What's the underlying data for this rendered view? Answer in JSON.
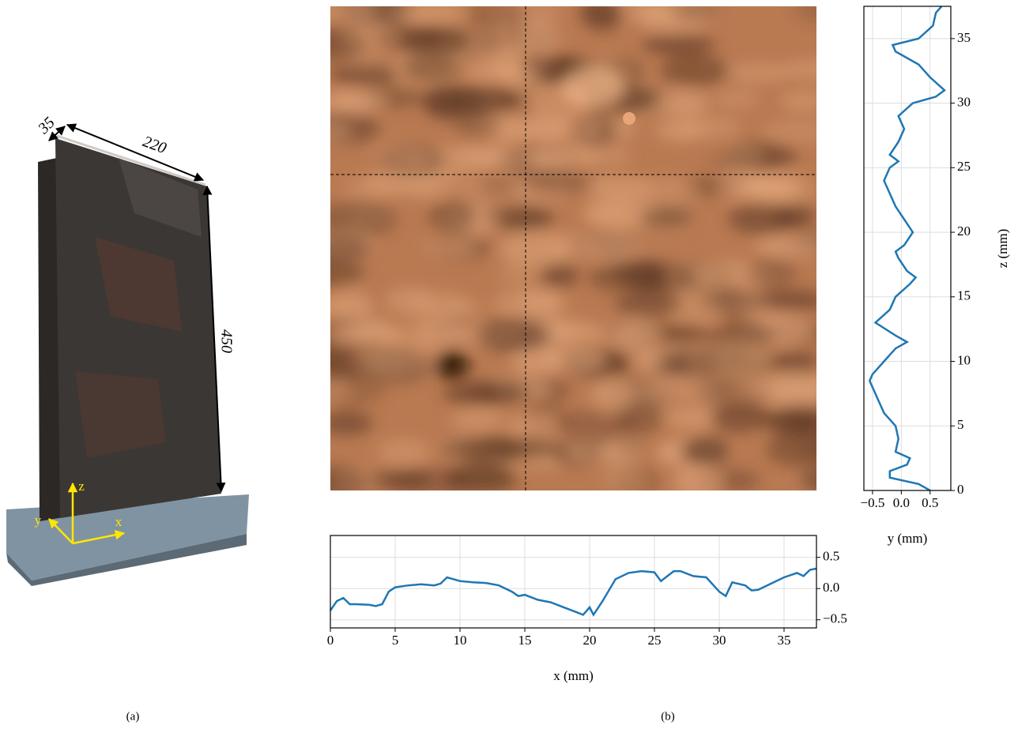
{
  "photo": {
    "dimensions": [
      "35",
      "220",
      "450"
    ],
    "axes": [
      "x",
      "y",
      "z"
    ]
  },
  "captions": [
    "(a)",
    "(b)"
  ],
  "chart_data": [
    {
      "type": "line",
      "xlabel": "x (mm)",
      "color": "#1f77b4",
      "x": [
        0,
        0.5,
        1,
        1.5,
        2,
        3,
        3.5,
        4,
        4.5,
        5,
        6,
        7,
        8,
        8.5,
        9,
        10,
        11,
        12,
        13,
        14,
        14.5,
        15,
        16,
        17,
        18,
        19,
        19.5,
        20,
        20.3,
        21,
        22,
        23,
        24,
        25,
        25.5,
        26,
        26.5,
        27,
        28,
        29,
        30,
        30.5,
        31,
        32,
        32.5,
        33,
        34,
        35,
        36,
        36.5,
        37,
        37.5
      ],
      "values": [
        -0.35,
        -0.2,
        -0.15,
        -0.25,
        -0.25,
        -0.26,
        -0.28,
        -0.25,
        -0.05,
        0.02,
        0.05,
        0.07,
        0.05,
        0.08,
        0.18,
        0.12,
        0.1,
        0.09,
        0.05,
        -0.05,
        -0.12,
        -0.1,
        -0.18,
        -0.22,
        -0.3,
        -0.38,
        -0.42,
        -0.3,
        -0.42,
        -0.2,
        0.15,
        0.25,
        0.28,
        0.26,
        0.12,
        0.2,
        0.28,
        0.28,
        0.2,
        0.18,
        -0.05,
        -0.12,
        0.1,
        0.05,
        -0.03,
        -0.02,
        0.08,
        0.18,
        0.25,
        0.2,
        0.3,
        0.32
      ],
      "xlim": [
        0,
        37.5
      ],
      "xticks": [
        0,
        5,
        10,
        15,
        20,
        25,
        30,
        35
      ],
      "ylim": [
        -0.63,
        0.85
      ],
      "yticks": [
        {
          "value": -0.5,
          "label": "−0.5"
        },
        {
          "value": 0,
          "label": "0.0"
        },
        0.5
      ],
      "grid": true,
      "yaxis_side": "right"
    },
    {
      "type": "line",
      "xlabel": "y (mm)",
      "ylabel": "z (mm)",
      "color": "#1f77b4",
      "x": [
        0.5,
        0.3,
        -0.2,
        -0.2,
        0.1,
        0.15,
        -0.1,
        -0.05,
        -0.1,
        -0.3,
        -0.4,
        -0.5,
        -0.55,
        -0.5,
        -0.3,
        -0.1,
        0.1,
        -0.1,
        -0.45,
        -0.2,
        -0.1,
        0.15,
        0.25,
        0.1,
        -0.05,
        -0.1,
        0.05,
        0.2,
        0.05,
        -0.1,
        -0.2,
        -0.3,
        -0.2,
        -0.05,
        -0.2,
        -0.05,
        0.05,
        -0.05,
        0.2,
        0.6,
        0.75,
        0.5,
        0.3,
        -0.1,
        -0.15,
        0.3,
        0.55,
        0.6,
        0.7
      ],
      "values": [
        0,
        0.5,
        1,
        1.5,
        2,
        2.5,
        3,
        4,
        5,
        6,
        7,
        8,
        8.5,
        9,
        10,
        11,
        11.5,
        12,
        13,
        14,
        15,
        16,
        16.5,
        17,
        18,
        18.5,
        19,
        20,
        21,
        22,
        23,
        24,
        25,
        25.5,
        26,
        27,
        28,
        29,
        30,
        30.5,
        31,
        32,
        33,
        34,
        34.5,
        35,
        36,
        37,
        37.5
      ],
      "xlim": [
        -0.65,
        0.86
      ],
      "xticks": [
        {
          "value": -0.5,
          "label": "−0.5"
        },
        {
          "value": 0,
          "label": "0.0"
        },
        0.5
      ],
      "ylim": [
        0,
        37.5
      ],
      "yticks": [
        0,
        5,
        10,
        15,
        20,
        25,
        30,
        35
      ],
      "grid": true,
      "yaxis_side": "right"
    }
  ]
}
